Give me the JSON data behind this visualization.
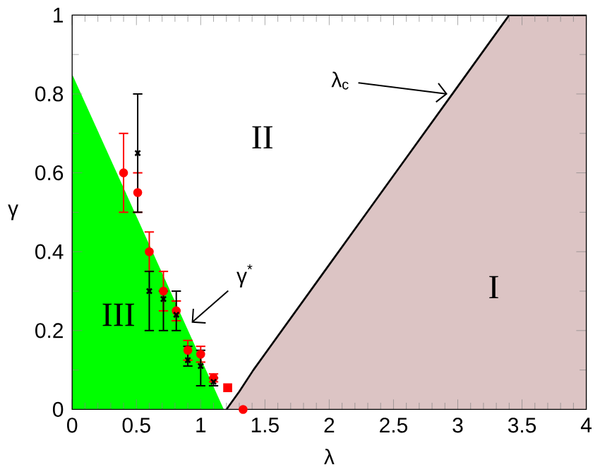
{
  "chart_data": {
    "type": "scatter",
    "xlabel": "λ",
    "ylabel": "γ",
    "xlim": [
      0,
      4
    ],
    "ylim": [
      0,
      1
    ],
    "xticks": [
      0,
      0.5,
      1,
      1.5,
      2,
      2.5,
      3,
      3.5,
      4
    ],
    "yticks": [
      0,
      0.2,
      0.4,
      0.6,
      0.8,
      1
    ],
    "series": [
      {
        "type": "area",
        "color": "#00ff00",
        "x": [
          0,
          1.18
        ],
        "values": [
          0.85,
          0
        ]
      },
      {
        "type": "area",
        "line_style": "solid",
        "color": "#dcc4c4",
        "x": [
          1.2,
          1.3,
          1.41,
          2,
          2.5,
          3,
          3.4,
          4
        ],
        "values": [
          0,
          0.045,
          0.1,
          0.367,
          0.593,
          0.819,
          1,
          1
        ]
      },
      {
        "marker": "circle",
        "color": "#ff0000",
        "x": [
          0.4,
          0.51,
          0.6,
          0.71,
          0.81,
          0.9,
          1.0,
          1.1,
          1.33
        ],
        "values": [
          0.6,
          0.55,
          0.4,
          0.3,
          0.25,
          0.15,
          0.14,
          0.08,
          0
        ],
        "errors": [
          0.1,
          0.05,
          0.05,
          0.05,
          0.025,
          0.025,
          0.02,
          0.01,
          null
        ]
      },
      {
        "marker": "cross",
        "color": "#000000",
        "x": [
          0.51,
          0.6,
          0.71,
          0.81,
          0.9,
          1.0,
          1.1
        ],
        "values": [
          0.65,
          0.3,
          0.28,
          0.24,
          0.125,
          0.11,
          0.07
        ],
        "errors": [
          [
            0.5,
            0.8
          ],
          [
            0.2,
            0.35
          ],
          [
            0.2,
            0.3
          ],
          [
            0.2,
            0.3
          ],
          [
            0.11,
            0.16
          ],
          [
            0.06,
            0.15
          ],
          [
            0.06,
            0.08
          ]
        ]
      },
      {
        "marker": "square",
        "color": "#ff0000",
        "x": [
          1.21
        ],
        "values": [
          0.055
        ]
      }
    ],
    "annotations": [
      "III",
      "II",
      "I",
      {
        "text": "γ$^{*}$",
        "x": 0.93,
        "y": 0.22
      },
      {
        "text": "λ$_{c}$",
        "x": 2.92,
        "y": 0.8
      }
    ]
  }
}
